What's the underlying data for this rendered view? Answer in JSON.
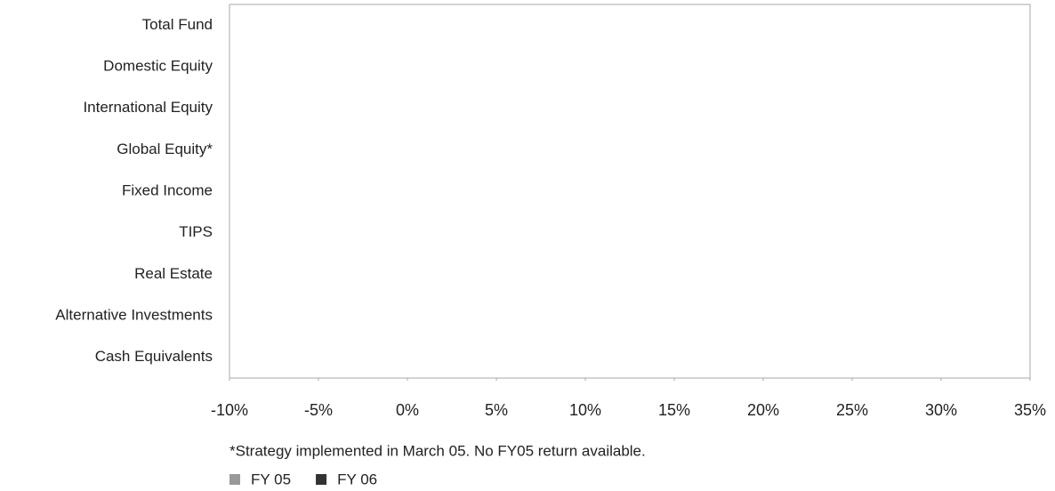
{
  "chart_data": {
    "type": "barh",
    "categories": [
      "Total Fund",
      "Domestic Equity",
      "International Equity",
      "Global Equity*",
      "Fixed Income",
      "TIPS",
      "Real Estate",
      "Alternative Investments",
      "Cash Equivalents"
    ],
    "series": [
      {
        "name": "FY 05",
        "color": "#999999",
        "values": [
          null,
          null,
          null,
          null,
          null,
          null,
          null,
          null,
          null
        ]
      },
      {
        "name": "FY 06",
        "color": "#333333",
        "values": [
          null,
          null,
          null,
          null,
          null,
          null,
          null,
          null,
          null
        ]
      }
    ],
    "xlim": [
      -10,
      35
    ],
    "xticks": [
      {
        "value": -10,
        "label": "-10%"
      },
      {
        "value": -5,
        "label": "-5%"
      },
      {
        "value": 0,
        "label": "0%"
      },
      {
        "value": 5,
        "label": "5%"
      },
      {
        "value": 10,
        "label": "10%"
      },
      {
        "value": 15,
        "label": "15%"
      },
      {
        "value": 20,
        "label": "20%"
      },
      {
        "value": 25,
        "label": "25%"
      },
      {
        "value": 30,
        "label": "30%"
      },
      {
        "value": 35,
        "label": "35%"
      }
    ],
    "footnote": "*Strategy implemented in March 05.  No FY05 return available.",
    "grid": false
  }
}
